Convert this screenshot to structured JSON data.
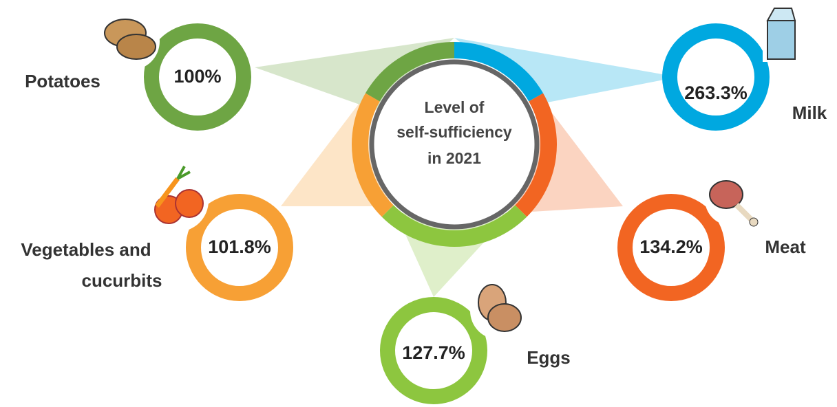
{
  "center": {
    "lines": [
      "Level of",
      "self-sufficiency",
      "in 2021"
    ]
  },
  "items": [
    {
      "label": [
        "Potatoes"
      ],
      "value": "100%"
    },
    {
      "label": [
        "Milk"
      ],
      "value": "263.3%"
    },
    {
      "label": [
        "Vegetables and",
        "cucurbits"
      ],
      "value": "101.8%"
    },
    {
      "label": [
        "Meat"
      ],
      "value": "134.2%"
    },
    {
      "label": [
        "Eggs"
      ],
      "value": "127.7%"
    }
  ]
}
